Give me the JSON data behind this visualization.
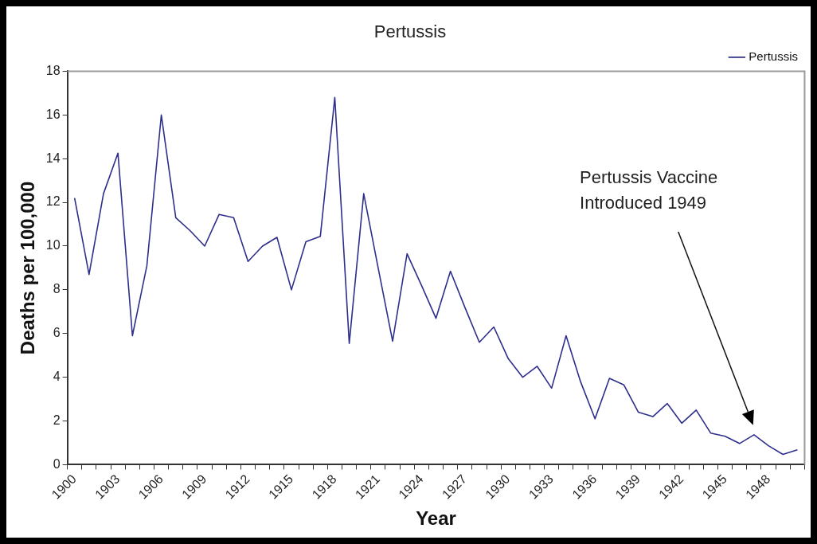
{
  "chart_data": {
    "type": "line",
    "title": "Pertussis",
    "xlabel": "Year",
    "ylabel": "Deaths per 100,000",
    "categories": [
      "1900",
      null,
      null,
      "1903",
      null,
      null,
      "1906",
      null,
      null,
      "1909",
      null,
      null,
      "1912",
      null,
      null,
      "1915",
      null,
      null,
      "1918",
      null,
      null,
      "1921",
      null,
      null,
      "1924",
      null,
      null,
      "1927",
      null,
      null,
      "1930",
      null,
      null,
      "1933",
      null,
      null,
      "1936",
      null,
      null,
      "1939",
      null,
      null,
      "1942",
      null,
      null,
      "1945",
      null,
      null,
      "1948",
      null,
      null
    ],
    "series": [
      {
        "name": "Pertussis",
        "color": "#2e2e8c",
        "values": [
          12.2,
          8.7,
          12.4,
          14.25,
          5.9,
          9.1,
          16.0,
          11.3,
          10.7,
          10.0,
          11.45,
          11.3,
          9.3,
          10.0,
          10.4,
          8.0,
          10.2,
          10.45,
          16.8,
          5.55,
          12.4,
          9.0,
          5.65,
          9.65,
          8.2,
          6.7,
          8.85,
          7.2,
          5.6,
          6.3,
          4.85,
          4.0,
          4.5,
          3.5,
          5.9,
          3.8,
          2.1,
          3.95,
          3.65,
          2.4,
          2.2,
          2.8,
          1.9,
          2.5,
          1.45,
          1.3,
          0.97,
          1.37,
          0.87,
          0.47,
          0.68
        ]
      }
    ],
    "ylim": [
      0,
      18
    ],
    "yticks": [
      0,
      2,
      4,
      6,
      8,
      10,
      12,
      14,
      16,
      18
    ],
    "grid": false,
    "legend": "top right",
    "marker": "none",
    "line_style": "solid",
    "annotations": [
      "Pertussis Vaccine Introduced 1949"
    ]
  }
}
